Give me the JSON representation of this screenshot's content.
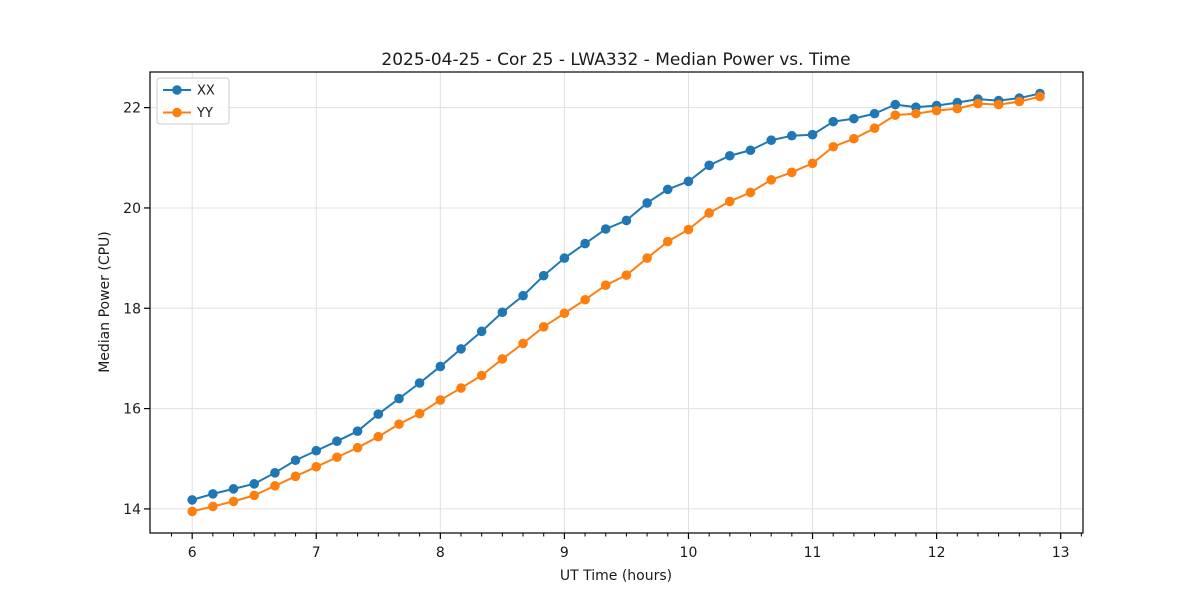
{
  "figure": {
    "background": "#ffffff",
    "frame_color": "#000000",
    "grid_color": "#e0e0e0",
    "text_color": "#1a1a1a"
  },
  "legend": {
    "entries": [
      {
        "label": "XX",
        "color": "#1f77b4"
      },
      {
        "label": "YY",
        "color": "#ff7f0e"
      }
    ],
    "position": "upper left",
    "border_color": "#cccccc"
  },
  "chart_data": {
    "type": "line",
    "title": "2025-04-25 - Cor 25 - LWA332 - Median Power vs. Time",
    "xlabel": "UT Time (hours)",
    "ylabel": "Median Power (CPU)",
    "xlim": [
      5.66,
      13.18
    ],
    "ylim": [
      13.52,
      22.71
    ],
    "x_ticks": [
      6,
      7,
      8,
      9,
      10,
      11,
      12,
      13
    ],
    "y_ticks": [
      14,
      16,
      18,
      20,
      22
    ],
    "x_minor_tick_step_hours": 0.16667,
    "grid": true,
    "legend_position": "upper left",
    "marker": "o",
    "x": [
      6.0,
      6.167,
      6.333,
      6.5,
      6.667,
      6.833,
      7.0,
      7.167,
      7.333,
      7.5,
      7.667,
      7.833,
      8.0,
      8.167,
      8.333,
      8.5,
      8.667,
      8.833,
      9.0,
      9.167,
      9.333,
      9.5,
      9.667,
      9.833,
      10.0,
      10.167,
      10.333,
      10.5,
      10.667,
      10.833,
      11.0,
      11.167,
      11.333,
      11.5,
      11.667,
      11.833,
      12.0,
      12.167,
      12.333,
      12.5,
      12.667,
      12.833
    ],
    "series": [
      {
        "name": "XX",
        "color": "#1f77b4",
        "values": [
          14.18,
          14.3,
          14.4,
          14.5,
          14.72,
          14.97,
          15.16,
          15.35,
          15.55,
          15.89,
          16.2,
          16.51,
          16.84,
          17.19,
          17.54,
          17.92,
          18.25,
          18.65,
          19.0,
          19.29,
          19.58,
          19.75,
          20.1,
          20.37,
          20.53,
          20.85,
          21.04,
          21.15,
          21.35,
          21.44,
          21.46,
          21.72,
          21.78,
          21.88,
          22.06,
          22.01,
          22.04,
          22.1,
          22.17,
          22.14,
          22.19,
          22.28
        ]
      },
      {
        "name": "YY",
        "color": "#ff7f0e",
        "values": [
          13.95,
          14.05,
          14.15,
          14.27,
          14.46,
          14.65,
          14.84,
          15.03,
          15.22,
          15.44,
          15.69,
          15.9,
          16.17,
          16.41,
          16.66,
          16.99,
          17.3,
          17.63,
          17.9,
          18.17,
          18.46,
          18.66,
          19.0,
          19.33,
          19.57,
          19.9,
          20.13,
          20.31,
          20.56,
          20.71,
          20.89,
          21.22,
          21.38,
          21.59,
          21.85,
          21.88,
          21.94,
          21.98,
          22.08,
          22.06,
          22.12,
          22.22
        ]
      }
    ]
  }
}
